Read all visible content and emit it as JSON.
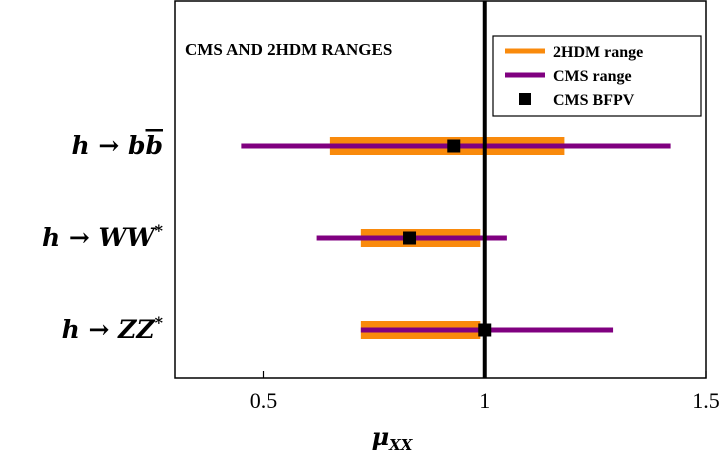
{
  "chart_data": {
    "type": "interval",
    "title": "CMS AND 2HDM RANGES",
    "xlabel": "μ",
    "xlabel_subscript": "XX",
    "xlim": [
      0.3,
      1.5
    ],
    "xticks": [
      0.5,
      1,
      1.5
    ],
    "xtick_labels": [
      "0.5",
      "1",
      "1.5"
    ],
    "reference_line_x": 1,
    "categories": [
      {
        "label": "h → bb̄",
        "main": "h → b",
        "bar_char": "b"
      },
      {
        "label": "h → WW*",
        "main": "h → WW",
        "sup": "*"
      },
      {
        "label": "h → ZZ*",
        "main": "h → ZZ",
        "sup": "*"
      }
    ],
    "series": [
      {
        "name": "2HDM range",
        "kind": "range",
        "color": "#f98a0c",
        "ranges": [
          [
            0.65,
            1.18
          ],
          [
            0.72,
            0.99
          ],
          [
            0.72,
            0.99
          ]
        ]
      },
      {
        "name": "CMS range",
        "kind": "range",
        "color": "#800080",
        "ranges": [
          [
            0.45,
            1.42
          ],
          [
            0.62,
            1.05
          ],
          [
            0.72,
            1.29
          ]
        ]
      },
      {
        "name": "CMS BFPV",
        "kind": "point",
        "color": "#000000",
        "values": [
          0.93,
          0.83,
          1.0
        ]
      }
    ],
    "legend_position": "top-right"
  }
}
